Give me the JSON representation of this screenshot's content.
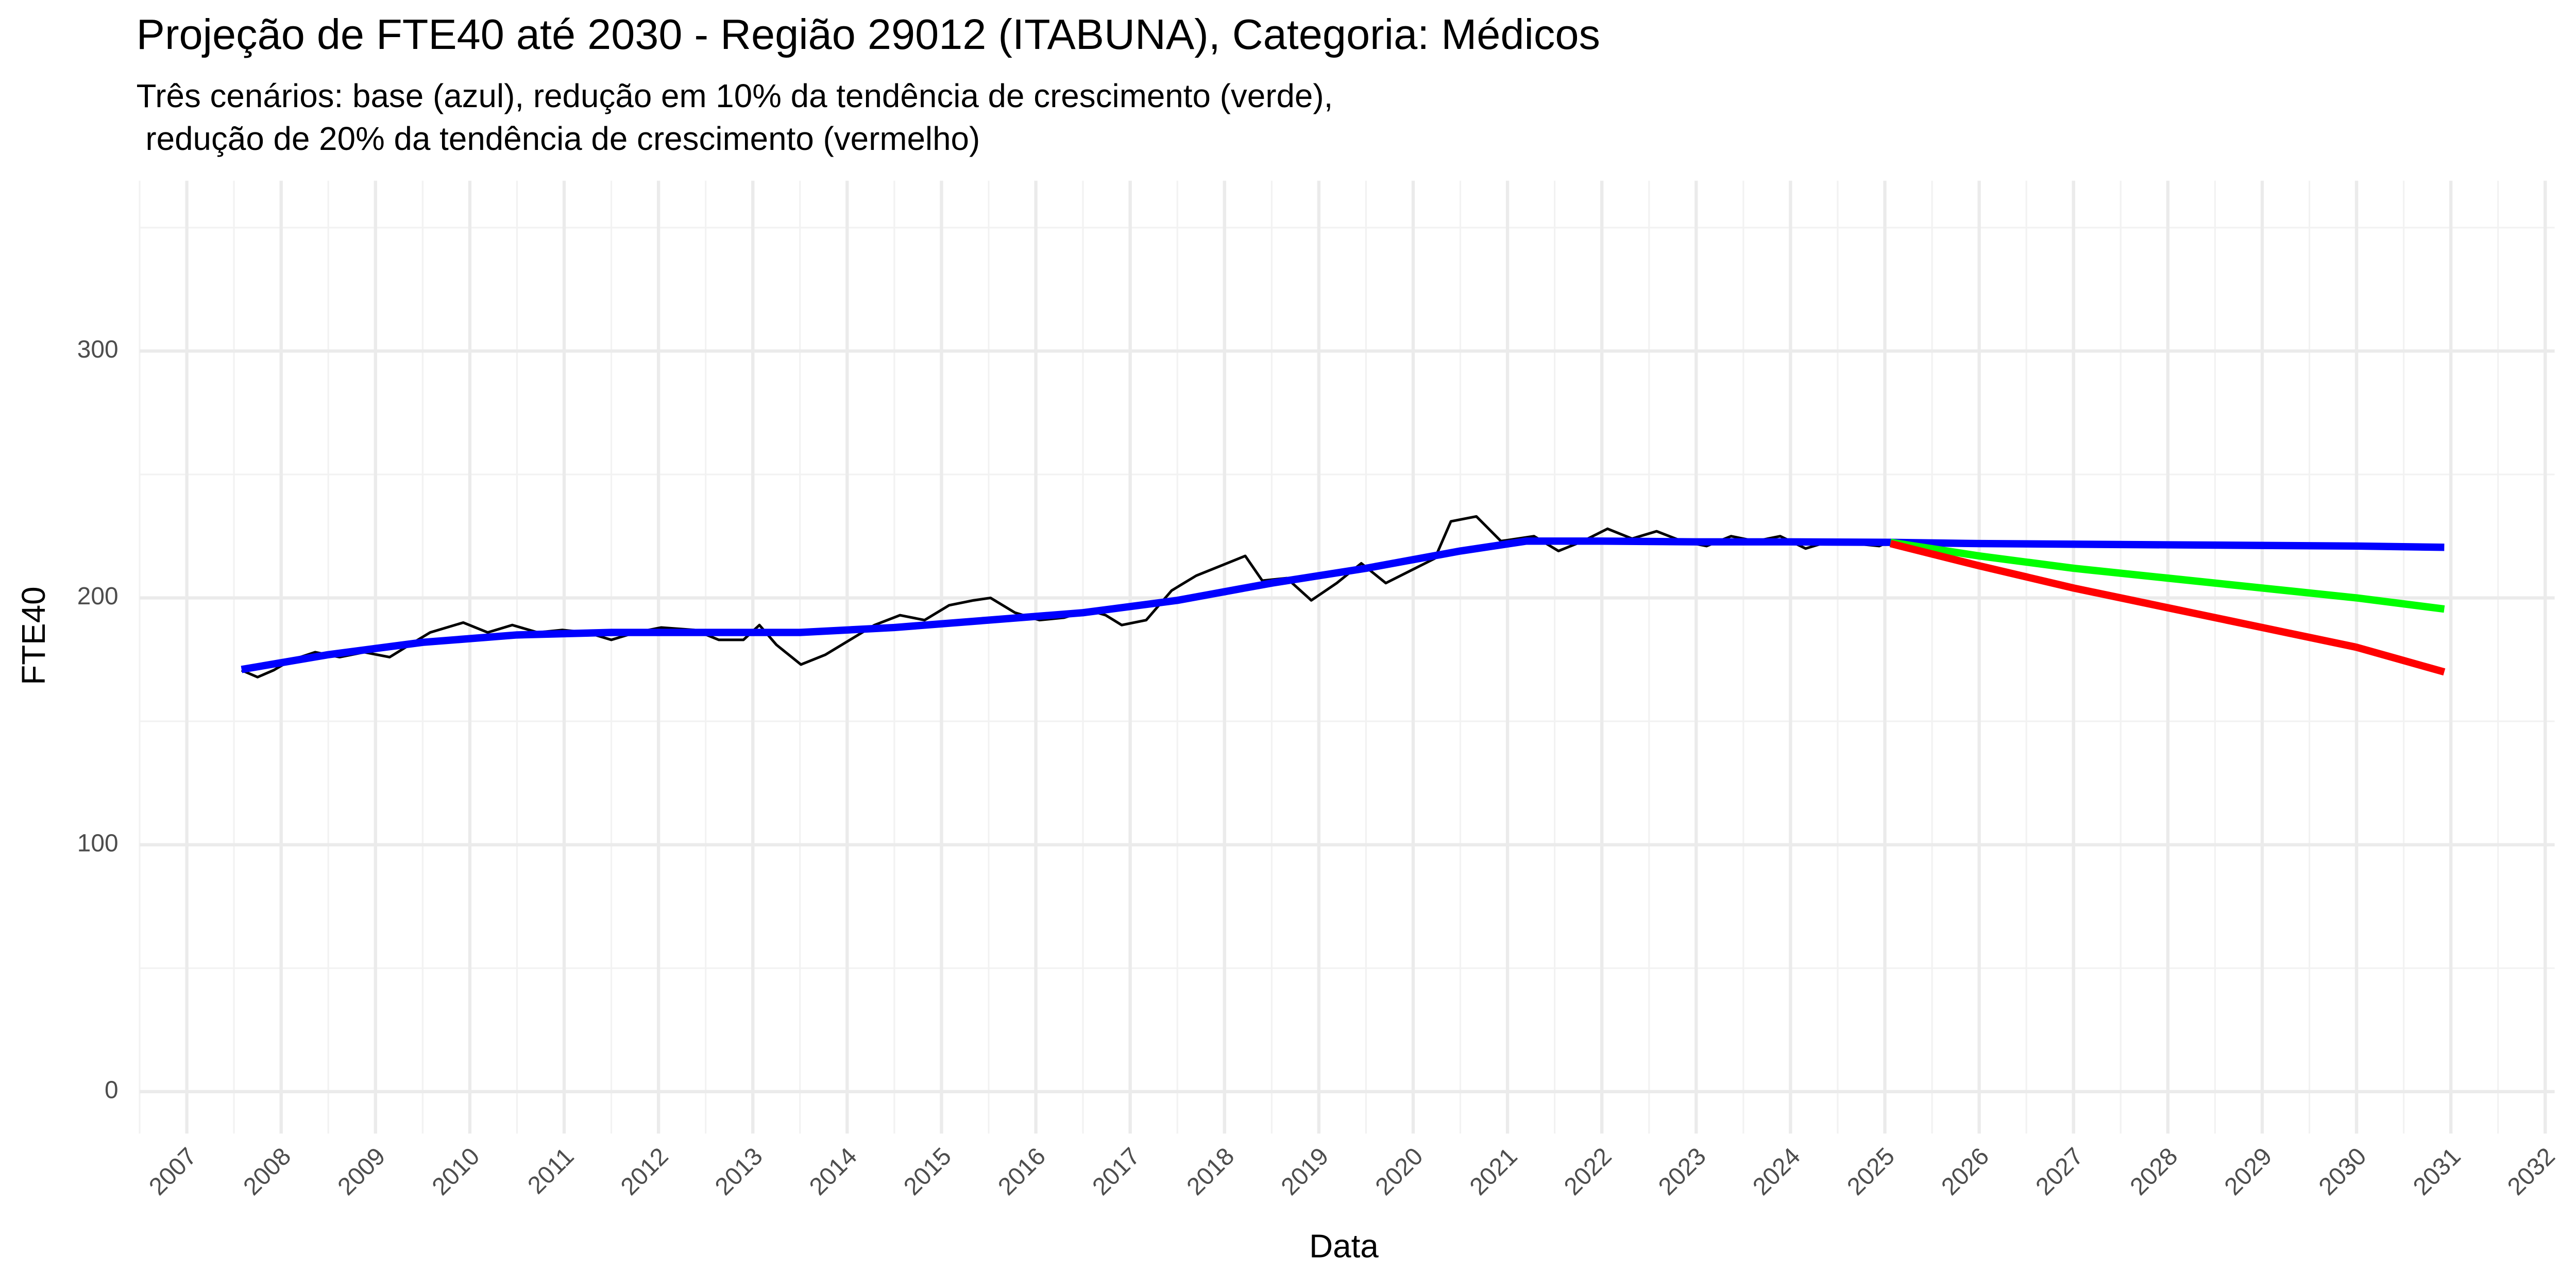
{
  "chart_data": {
    "type": "line",
    "title": "Projeção de FTE40 até 2030 - Região 29012 (ITABUNA), Categoria: Médicos",
    "subtitle": [
      "Três cenários: base (azul), redução em 10% da tendência de crescimento (verde),",
      " redução de 20% da tendência de crescimento (vermelho)"
    ],
    "x_label": "Data",
    "y_label": "FTE40",
    "xlim": [
      2006.5,
      2032.1
    ],
    "ylim": [
      -17,
      369
    ],
    "xticks": [
      2007,
      2008,
      2009,
      2010,
      2011,
      2012,
      2013,
      2014,
      2015,
      2016,
      2017,
      2018,
      2019,
      2020,
      2021,
      2022,
      2023,
      2024,
      2025,
      2026,
      2027,
      2028,
      2029,
      2030,
      2031,
      2032
    ],
    "yticks": [
      0,
      100,
      200,
      300
    ],
    "grid": true,
    "series": [
      {
        "color": "#000000",
        "x": [
          2007.58,
          2007.75,
          2007.92,
          2008.1,
          2008.36,
          2008.62,
          2008.88,
          2009.15,
          2009.32,
          2009.58,
          2009.93,
          2010.19,
          2010.45,
          2010.72,
          2010.98,
          2011.24,
          2011.5,
          2011.76,
          2012.03,
          2012.38,
          2012.64,
          2012.9,
          2013.07,
          2013.25,
          2013.51,
          2013.77,
          2014.03,
          2014.29,
          2014.56,
          2014.82,
          2015.08,
          2015.34,
          2015.52,
          2015.78,
          2016.04,
          2016.3,
          2016.56,
          2016.74,
          2016.91,
          2017.17,
          2017.44,
          2017.7,
          2017.96,
          2018.22,
          2018.4,
          2018.66,
          2018.92,
          2019.19,
          2019.45,
          2019.71,
          2019.97,
          2020.23,
          2020.4,
          2020.67,
          2020.93,
          2021.28,
          2021.54,
          2021.8,
          2022.06,
          2022.32,
          2022.58,
          2022.85,
          2023.11,
          2023.37,
          2023.63,
          2023.89,
          2024.16,
          2024.42,
          2024.68,
          2024.94,
          2025.06
        ],
        "values": [
          170.7,
          167.9,
          170.7,
          174.7,
          178,
          176,
          178,
          176,
          180,
          186,
          190,
          186,
          189,
          186,
          187,
          186,
          183,
          186,
          188,
          187,
          183,
          183,
          189,
          181,
          173,
          177,
          183,
          189,
          193,
          191,
          197,
          199,
          200,
          194,
          191,
          192,
          195,
          193,
          189,
          191,
          203,
          209,
          213,
          217,
          207,
          208,
          199,
          206,
          214,
          206,
          211,
          216,
          231,
          233,
          223,
          225,
          219,
          223,
          228,
          224,
          227,
          223,
          221,
          225,
          223,
          225,
          220,
          223,
          222,
          221,
          223
        ]
      },
      {
        "color": "#0000ff",
        "x": [
          2007.58,
          2008.5,
          2009.5,
          2010.5,
          2011.5,
          2012.5,
          2013.5,
          2014.5,
          2015.5,
          2016.5,
          2017.5,
          2018.5,
          2019.5,
          2020.5,
          2021.2,
          2022,
          2023,
          2024,
          2025.06,
          2026,
          2028,
          2030,
          2030.93
        ],
        "values": [
          171,
          177,
          182,
          185,
          186,
          186,
          186,
          188,
          191,
          194,
          199,
          206,
          212,
          219,
          223,
          223,
          222.7,
          222.7,
          222.5,
          222,
          221.5,
          221,
          220.5
        ]
      },
      {
        "color": "#00ff00",
        "x": [
          2025.06,
          2026,
          2027,
          2028,
          2029,
          2030,
          2030.93
        ],
        "values": [
          222.5,
          217,
          212,
          208,
          204,
          200,
          195.5
        ]
      },
      {
        "color": "#ff0000",
        "x": [
          2025.06,
          2026,
          2027,
          2028,
          2029,
          2030,
          2030.93
        ],
        "values": [
          222,
          213,
          204,
          196,
          188,
          180,
          170
        ]
      }
    ]
  }
}
